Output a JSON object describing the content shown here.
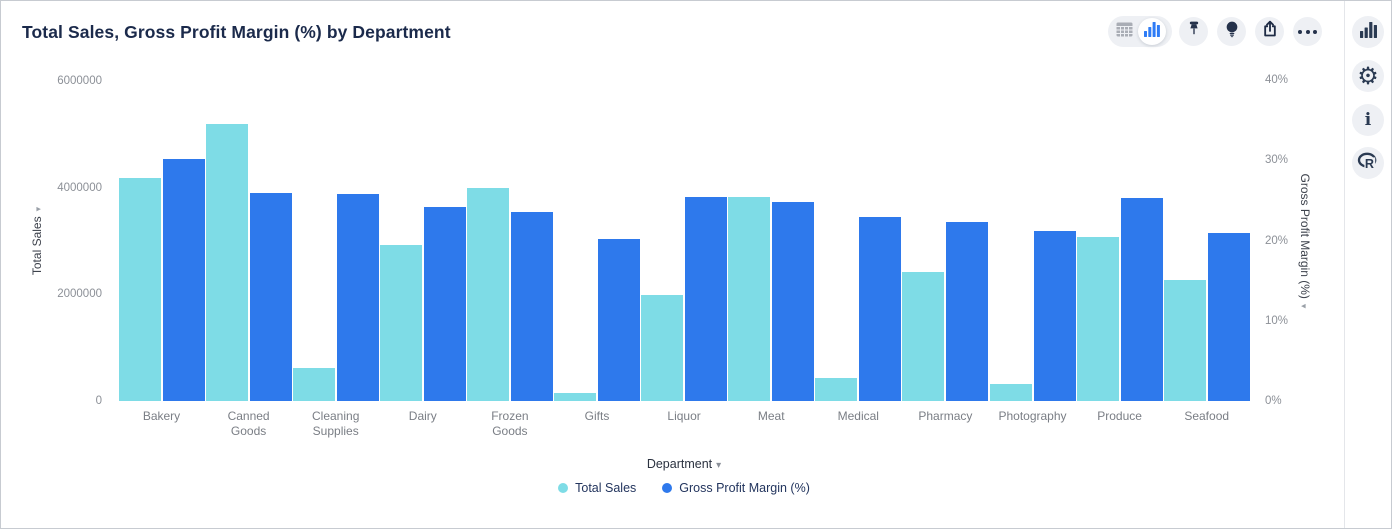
{
  "header": {
    "title": "Total Sales, Gross Profit Margin (%) by Department"
  },
  "toolbar": {
    "icons": [
      "table-view-icon",
      "chart-view-icon",
      "pin-icon",
      "lightbulb-icon",
      "export-icon",
      "more-options-icon"
    ],
    "selected_view": "chart-view"
  },
  "sidebar": {
    "icons": [
      "chart-panel-icon",
      "settings-gear-icon",
      "info-icon",
      "r-language-icon"
    ],
    "info_glyph": "i"
  },
  "colors": {
    "total_sales": "#7edce6",
    "gross_profit_margin": "#2e79ec",
    "accent_blue": "#2e7cf6",
    "icon_dark": "#2a3a52",
    "title_text": "#1b2a4b"
  },
  "x_axis_control": {
    "label": "Department",
    "caret": "▾"
  },
  "chart_data": {
    "type": "bar",
    "title": "Total Sales, Gross Profit Margin (%) by Department",
    "grid": false,
    "legend_position": "bottom",
    "categories": [
      "Bakery",
      "Canned Goods",
      "Cleaning Supplies",
      "Dairy",
      "Frozen Goods",
      "Gifts",
      "Liquor",
      "Meat",
      "Medical",
      "Pharmacy",
      "Photography",
      "Produce",
      "Seafood"
    ],
    "series": [
      {
        "name": "Total Sales",
        "axis": "left",
        "color": "#7edce6",
        "values": [
          4180000,
          5190000,
          620000,
          2930000,
          3990000,
          150000,
          1990000,
          3830000,
          430000,
          2420000,
          310000,
          3080000,
          2270000
        ]
      },
      {
        "name": "Gross Profit Margin (%)",
        "axis": "right",
        "color": "#2e79ec",
        "values": [
          30.1,
          25.9,
          25.8,
          24.2,
          23.6,
          20.2,
          25.4,
          24.8,
          22.9,
          22.3,
          21.2,
          25.3,
          20.9
        ]
      }
    ],
    "left_axis": {
      "label": "Total Sales",
      "range": [
        0,
        6000000
      ],
      "ticks": [
        {
          "label": "0",
          "value": 0
        },
        {
          "label": "2000000",
          "value": 2000000
        },
        {
          "label": "4000000",
          "value": 4000000
        },
        {
          "label": "6000000",
          "value": 6000000
        }
      ]
    },
    "right_axis": {
      "label": "Gross Profit Margin (%)",
      "range": [
        0,
        40
      ],
      "ticks": [
        {
          "label": "0%",
          "value": 0
        },
        {
          "label": "10%",
          "value": 10
        },
        {
          "label": "20%",
          "value": 20
        },
        {
          "label": "30%",
          "value": 30
        },
        {
          "label": "40%",
          "value": 40
        }
      ]
    },
    "x_axis": {
      "label": "Department"
    }
  }
}
